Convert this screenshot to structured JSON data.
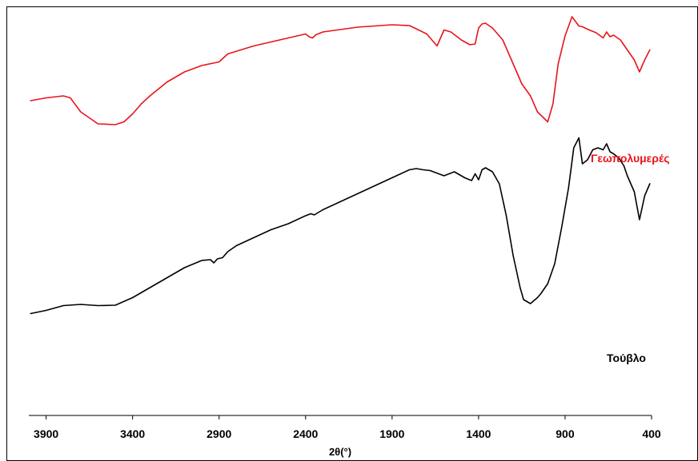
{
  "chart_data": {
    "type": "line",
    "title": "",
    "xlabel": "2θ(°)",
    "ylabel": "",
    "xlim": [
      4000,
      400
    ],
    "x_reversed": true,
    "ylim": [
      0,
      100
    ],
    "y_ticks_shown": false,
    "grid": false,
    "legend": "inline labels at right end of each curve",
    "x_ticks": [
      3900,
      3400,
      2900,
      2400,
      1900,
      1400,
      900,
      400
    ],
    "x_tick_labels": [
      "3900",
      "3400",
      "2900",
      "2400",
      "1900",
      "1400",
      "900",
      "400"
    ],
    "series": [
      {
        "name": "Γεωπολυμερές",
        "color": "#e8141b",
        "x": [
          3990,
          3900,
          3800,
          3760,
          3700,
          3600,
          3500,
          3450,
          3400,
          3350,
          3300,
          3200,
          3100,
          3000,
          2900,
          2850,
          2700,
          2500,
          2400,
          2380,
          2360,
          2340,
          2300,
          2100,
          1900,
          1800,
          1780,
          1700,
          1660,
          1640,
          1600,
          1560,
          1500,
          1450,
          1420,
          1400,
          1380,
          1360,
          1320,
          1260,
          1200,
          1150,
          1100,
          1060,
          1000,
          970,
          940,
          900,
          860,
          820,
          800,
          760,
          720,
          680,
          660,
          640,
          620,
          580,
          540,
          500,
          470,
          440,
          410
        ],
        "values": [
          78.8,
          79.5,
          80.0,
          79.5,
          76.0,
          73.0,
          72.8,
          73.5,
          75.5,
          78.0,
          80.0,
          83.5,
          86.0,
          87.6,
          88.5,
          90.5,
          92.5,
          94.5,
          95.5,
          94.8,
          94.5,
          95.3,
          96.0,
          97.2,
          97.8,
          97.6,
          97.2,
          95.5,
          93.5,
          92.5,
          96.5,
          96.0,
          94.0,
          92.8,
          93.0,
          97.0,
          98.0,
          98.2,
          97.0,
          94.0,
          88.0,
          83.0,
          80.0,
          76.0,
          73.5,
          78.0,
          88.0,
          95.0,
          99.8,
          97.5,
          97.3,
          96.5,
          95.8,
          94.5,
          96.0,
          94.8,
          95.2,
          94.0,
          91.5,
          89.0,
          86.0,
          89.0,
          91.5
        ]
      },
      {
        "name": "Τούβλο",
        "color": "#000000",
        "x": [
          3990,
          3900,
          3800,
          3700,
          3600,
          3500,
          3400,
          3300,
          3200,
          3100,
          3000,
          2950,
          2930,
          2910,
          2880,
          2850,
          2800,
          2700,
          2600,
          2500,
          2400,
          2370,
          2350,
          2300,
          2200,
          2100,
          2000,
          1900,
          1800,
          1760,
          1720,
          1680,
          1600,
          1540,
          1480,
          1440,
          1420,
          1400,
          1380,
          1360,
          1320,
          1280,
          1240,
          1200,
          1160,
          1140,
          1100,
          1060,
          1040,
          1000,
          960,
          920,
          880,
          850,
          820,
          800,
          770,
          740,
          710,
          680,
          660,
          640,
          620,
          590,
          560,
          540,
          500,
          470,
          440,
          410
        ],
        "values": [
          25.5,
          26.3,
          27.5,
          27.8,
          27.5,
          27.6,
          29.5,
          32.0,
          34.5,
          37.0,
          38.8,
          39.0,
          38.2,
          39.2,
          39.5,
          41.0,
          42.5,
          44.5,
          46.5,
          48.0,
          50.0,
          50.5,
          50.2,
          51.5,
          53.5,
          55.5,
          57.5,
          59.5,
          61.5,
          61.8,
          61.5,
          61.3,
          60.0,
          61.0,
          59.5,
          58.8,
          60.5,
          59.0,
          61.5,
          62.0,
          61.0,
          58.0,
          50.0,
          40.0,
          32.0,
          29.0,
          28.0,
          29.5,
          30.5,
          33.0,
          38.0,
          47.0,
          57.0,
          67.0,
          69.5,
          63.0,
          64.0,
          66.5,
          67.0,
          66.5,
          68.0,
          66.0,
          65.5,
          64.5,
          62.5,
          60.0,
          56.0,
          49.0,
          55.0,
          58.0
        ]
      }
    ],
    "annotations": [
      {
        "text": "Γεωπολυμερές",
        "color": "#e8141b"
      },
      {
        "text": "Τούβλο",
        "color": "#000000"
      }
    ]
  }
}
